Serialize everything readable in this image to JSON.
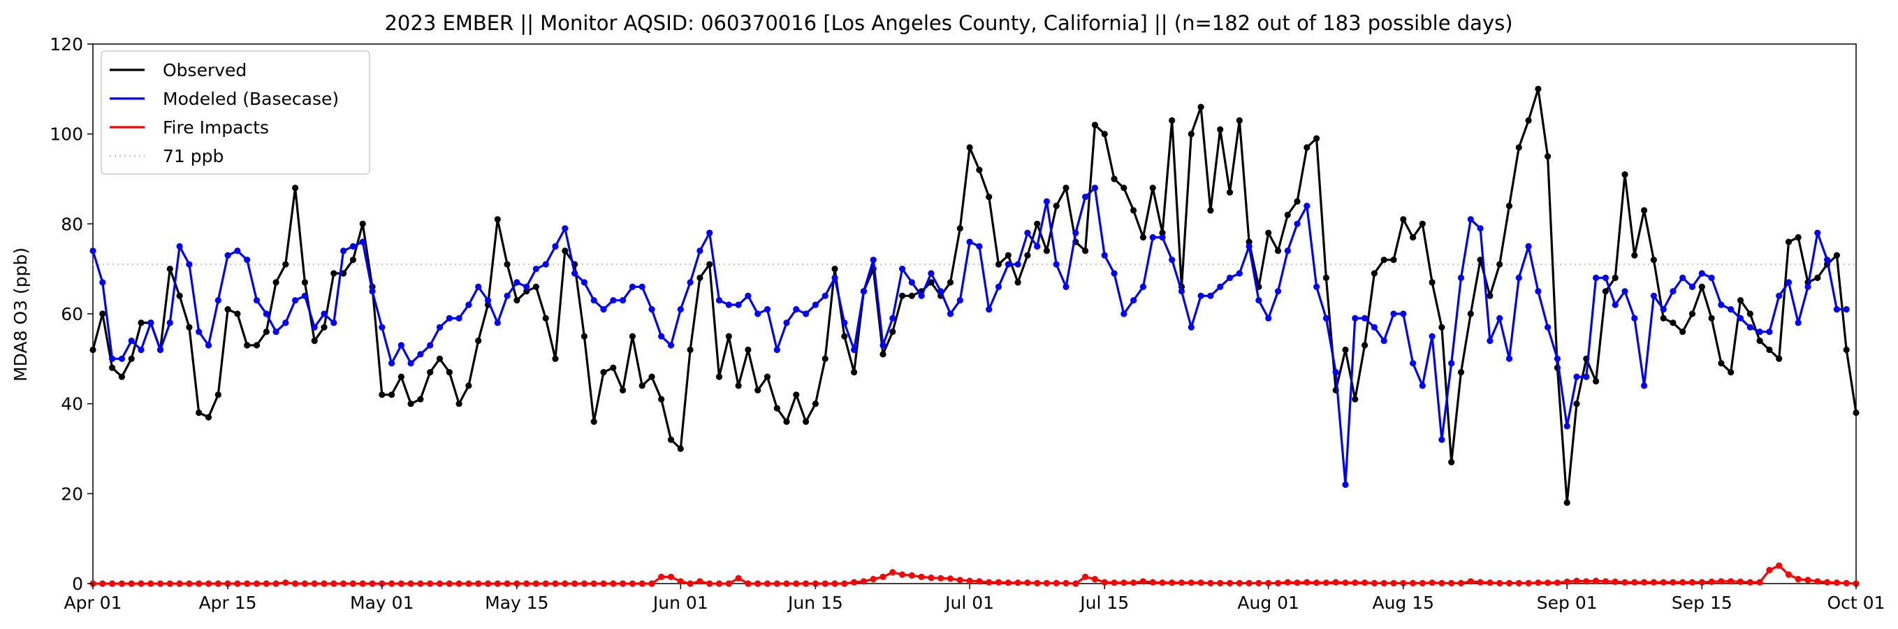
{
  "chart_data": {
    "type": "line",
    "title": "2023 EMBER || Monitor AQSID: 060370016 [Los Angeles County, California] || (n=182 out of 183 possible days)",
    "xlabel": "",
    "ylabel": "MDA8 O3 (ppb)",
    "ylim": [
      0,
      120
    ],
    "y_ticks": [
      "0",
      "20",
      "40",
      "60",
      "80",
      "100",
      "120"
    ],
    "x_range": [
      "2023-04-01",
      "2023-10-01"
    ],
    "x_ticks": [
      {
        "date": "2023-04-01",
        "label": "Apr 01"
      },
      {
        "date": "2023-04-15",
        "label": "Apr 15"
      },
      {
        "date": "2023-05-01",
        "label": "May 01"
      },
      {
        "date": "2023-05-15",
        "label": "May 15"
      },
      {
        "date": "2023-06-01",
        "label": "Jun 01"
      },
      {
        "date": "2023-06-15",
        "label": "Jun 15"
      },
      {
        "date": "2023-07-01",
        "label": "Jul 01"
      },
      {
        "date": "2023-07-15",
        "label": "Jul 15"
      },
      {
        "date": "2023-08-01",
        "label": "Aug 01"
      },
      {
        "date": "2023-08-15",
        "label": "Aug 15"
      },
      {
        "date": "2023-09-01",
        "label": "Sep 01"
      },
      {
        "date": "2023-09-15",
        "label": "Sep 15"
      },
      {
        "date": "2023-10-01",
        "label": "Oct 01"
      }
    ],
    "grid": false,
    "legend_position": "top-left",
    "series": [
      {
        "name": "Observed",
        "color": "#000000",
        "start_date": "2023-04-01",
        "values": [
          52,
          60,
          48,
          46,
          50,
          58,
          58,
          52,
          70,
          64,
          57,
          38,
          37,
          42,
          61,
          60,
          53,
          53,
          56,
          67,
          71,
          88,
          67,
          54,
          57,
          69,
          69,
          72,
          80,
          66,
          42,
          42,
          46,
          40,
          41,
          47,
          50,
          47,
          40,
          44,
          54,
          62,
          81,
          71,
          63,
          65,
          66,
          59,
          50,
          74,
          71,
          55,
          36,
          47,
          48,
          43,
          55,
          44,
          46,
          41,
          32,
          30,
          52,
          68,
          71,
          46,
          55,
          44,
          52,
          43,
          46,
          39,
          36,
          42,
          36,
          40,
          50,
          70,
          55,
          47,
          65,
          70,
          51,
          56,
          64,
          64,
          65,
          67,
          64,
          67,
          79,
          97,
          92,
          86,
          71,
          73,
          67,
          73,
          80,
          74,
          84,
          88,
          76,
          74,
          102,
          100,
          90,
          88,
          83,
          77,
          88,
          78,
          103,
          66,
          100,
          106,
          83,
          101,
          87,
          103,
          76,
          66,
          78,
          74,
          82,
          85,
          97,
          99,
          68,
          43,
          52,
          41,
          53,
          69,
          72,
          72,
          81,
          77,
          80,
          67,
          57,
          27,
          47,
          60,
          72,
          64,
          71,
          84,
          97,
          103,
          110,
          95,
          48,
          18,
          40,
          50,
          45,
          65,
          68,
          91,
          73,
          83,
          72,
          59,
          58,
          56,
          60,
          66,
          59,
          49,
          47,
          63,
          60,
          54,
          52,
          50,
          76,
          77,
          67,
          68,
          71,
          73,
          52,
          38
        ]
      },
      {
        "name": "Modeled (Basecase)",
        "color": "#0000ff",
        "start_date": "2023-04-01",
        "values": [
          74,
          67,
          50,
          50,
          54,
          52,
          58,
          52,
          58,
          75,
          71,
          56,
          53,
          63,
          73,
          74,
          72,
          63,
          60,
          56,
          58,
          63,
          64,
          57,
          60,
          58,
          74,
          75,
          76,
          65,
          57,
          49,
          53,
          49,
          51,
          53,
          57,
          59,
          59,
          62,
          66,
          63,
          58,
          64,
          67,
          66,
          70,
          71,
          75,
          79,
          69,
          67,
          63,
          61,
          63,
          63,
          66,
          66,
          61,
          55,
          53,
          61,
          67,
          74,
          78,
          63,
          62,
          62,
          64,
          60,
          61,
          52,
          58,
          61,
          60,
          62,
          64,
          68,
          58,
          52,
          65,
          72,
          53,
          59,
          70,
          67,
          64,
          69,
          65,
          60,
          63,
          76,
          75,
          61,
          66,
          71,
          71,
          78,
          75,
          85,
          71,
          66,
          78,
          86,
          88,
          73,
          69,
          60,
          63,
          66,
          77,
          77,
          72,
          65,
          57,
          64,
          64,
          66,
          68,
          69,
          75,
          63,
          59,
          65,
          74,
          80,
          84,
          66,
          59,
          47,
          22,
          59,
          59,
          57,
          54,
          60,
          60,
          49,
          44,
          55,
          32,
          49,
          68,
          81,
          79,
          54,
          59,
          50,
          68,
          75,
          65,
          57,
          50,
          35,
          46,
          46,
          68,
          68,
          62,
          65,
          59,
          44,
          64,
          61,
          65,
          68,
          66,
          69,
          68,
          62,
          61,
          59,
          57,
          56,
          56,
          64,
          67,
          58,
          66,
          78,
          72,
          61,
          61
        ]
      },
      {
        "name": "Fire Impacts",
        "color": "#ff0000",
        "start_date": "2023-04-01",
        "values": [
          0,
          0,
          0,
          0,
          0,
          0,
          0,
          0,
          0,
          0,
          0,
          0,
          0,
          0,
          0,
          0,
          0,
          0,
          0,
          0,
          0.2,
          0,
          0,
          0,
          0,
          0,
          0,
          0,
          0,
          0,
          0,
          0,
          0,
          0,
          0,
          0,
          0,
          0,
          0,
          0,
          0,
          0,
          0,
          0,
          0,
          0,
          0,
          0,
          0,
          0,
          0,
          0,
          0,
          0,
          0,
          0,
          0,
          0,
          0,
          1.5,
          1.5,
          0.5,
          0,
          0.5,
          0,
          0,
          0,
          1.2,
          0,
          0,
          0,
          0,
          0,
          0,
          0,
          0,
          0,
          0,
          0,
          0.3,
          0.5,
          1,
          1.5,
          2.5,
          2,
          1.8,
          1.5,
          1.3,
          1.2,
          1.1,
          0.8,
          0.6,
          0.5,
          0.3,
          0.3,
          0.2,
          0.2,
          0.2,
          0.1,
          0.1,
          0.1,
          0.1,
          0,
          1.5,
          1,
          0.3,
          0.2,
          0.2,
          0.2,
          0.5,
          0.3,
          0.2,
          0.2,
          0.2,
          0.2,
          0.2,
          0.1,
          0.1,
          0.1,
          0.1,
          0.1,
          0.1,
          0.1,
          0.1,
          0.3,
          0.2,
          0.3,
          0.2,
          0.2,
          0.3,
          0.2,
          0.2,
          0.2,
          0.1,
          0.1,
          0.1,
          0.1,
          0.1,
          0.1,
          0.2,
          0.1,
          0.1,
          0.1,
          0.5,
          0.3,
          0.2,
          0.1,
          0.1,
          0.1,
          0.1,
          0.2,
          0.2,
          0.2,
          0.4,
          0.6,
          0.5,
          0.6,
          0.5,
          0.4,
          0.3,
          0.3,
          0.3,
          0.3,
          0.3,
          0.3,
          0.3,
          0.3,
          0.3,
          0.4,
          0.5,
          0.5,
          0.4,
          0.3,
          0.3,
          3,
          4,
          2,
          1,
          0.8,
          0.5,
          0.3,
          0.2,
          0.1,
          0
        ]
      }
    ],
    "reference_line": {
      "name": "71 ppb",
      "value": 71,
      "color": "#cccccc",
      "style": "dotted"
    }
  }
}
